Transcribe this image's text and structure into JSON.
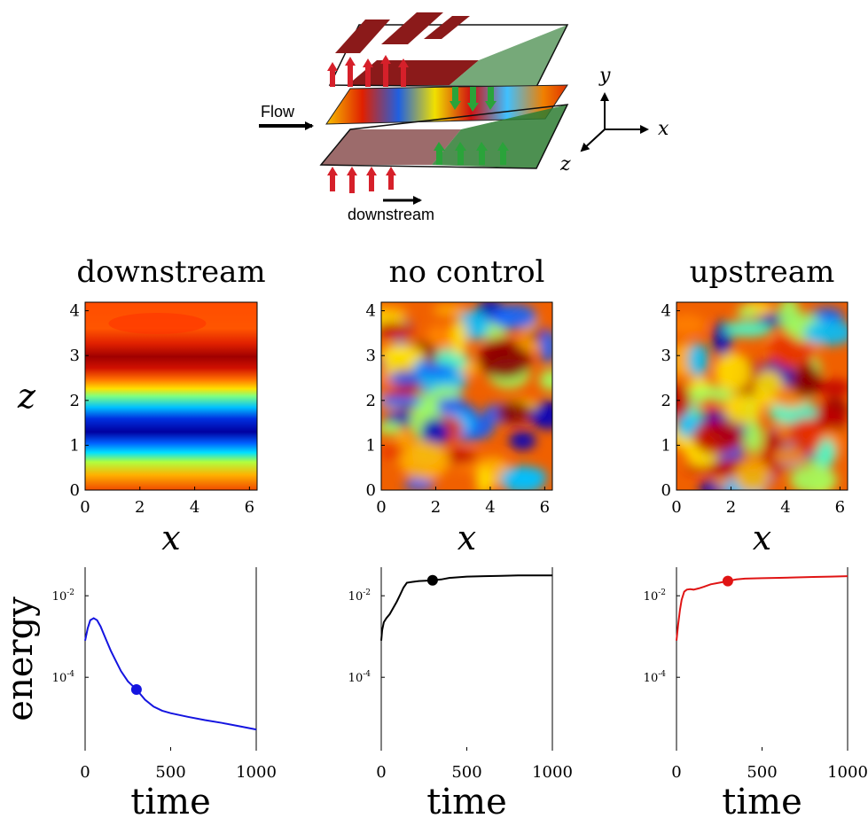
{
  "schematic": {
    "flow_label": "Flow",
    "downstream_label": "downstream",
    "axis_labels": {
      "y": "y",
      "x": "x",
      "z": "z"
    },
    "colors": {
      "upstream_actuator": "#8b1a1a",
      "downstream_actuator": "#2e7d32"
    }
  },
  "chart_data": [
    {
      "type": "heatmap",
      "title": "downstream",
      "xlabel": "x",
      "ylabel": "z",
      "xticks": [
        "0",
        "2",
        "4",
        "6"
      ],
      "yticks": [
        "0",
        "1",
        "2",
        "3",
        "4"
      ],
      "xlim": [
        0,
        6.28
      ],
      "ylim": [
        0,
        4.19
      ],
      "pattern": "spanwise-streak",
      "colormap": "jet"
    },
    {
      "type": "heatmap",
      "title": "no control",
      "xlabel": "x",
      "ylabel": "",
      "xticks": [
        "0",
        "2",
        "4",
        "6"
      ],
      "yticks": [
        "0",
        "1",
        "2",
        "3",
        "4"
      ],
      "xlim": [
        0,
        6.28
      ],
      "ylim": [
        0,
        4.19
      ],
      "pattern": "turbulent",
      "colormap": "jet"
    },
    {
      "type": "heatmap",
      "title": "upstream",
      "xlabel": "x",
      "ylabel": "",
      "xticks": [
        "0",
        "2",
        "4",
        "6"
      ],
      "yticks": [
        "0",
        "1",
        "2",
        "3",
        "4"
      ],
      "xlim": [
        0,
        6.28
      ],
      "ylim": [
        0,
        4.19
      ],
      "pattern": "turbulent",
      "colormap": "jet"
    },
    {
      "type": "line",
      "title": "",
      "xlabel": "time",
      "ylabel": "energy",
      "yscale": "log",
      "xlim": [
        0,
        1000
      ],
      "ylim_log10": [
        -5.8,
        -1.3
      ],
      "xticks": [
        "0",
        "500",
        "1000"
      ],
      "yticks": [
        {
          "label": "10",
          "exp": "-2",
          "log10": -2
        },
        {
          "label": "10",
          "exp": "-4",
          "log10": -4
        }
      ],
      "series": [
        {
          "color": "#1414e0",
          "x": [
            0,
            15,
            30,
            50,
            70,
            90,
            110,
            130,
            150,
            180,
            210,
            250,
            300,
            350,
            400,
            450,
            500,
            600,
            700,
            800,
            900,
            1000
          ],
          "log10_energy": [
            -3.1,
            -2.8,
            -2.6,
            -2.55,
            -2.6,
            -2.75,
            -2.95,
            -3.15,
            -3.35,
            -3.6,
            -3.85,
            -4.1,
            -4.3,
            -4.55,
            -4.72,
            -4.82,
            -4.88,
            -4.97,
            -5.05,
            -5.12,
            -5.2,
            -5.28
          ],
          "marker": {
            "x": 300,
            "log10_energy": -4.3
          }
        }
      ]
    },
    {
      "type": "line",
      "title": "",
      "xlabel": "time",
      "ylabel": "",
      "yscale": "log",
      "xlim": [
        0,
        1000
      ],
      "ylim_log10": [
        -5.8,
        -1.3
      ],
      "xticks": [
        "0",
        "500",
        "1000"
      ],
      "yticks": [
        {
          "label": "10",
          "exp": "-2",
          "log10": -2
        },
        {
          "label": "10",
          "exp": "-4",
          "log10": -4
        }
      ],
      "series": [
        {
          "color": "#000000",
          "x": [
            0,
            5,
            15,
            30,
            50,
            70,
            90,
            110,
            130,
            150,
            180,
            220,
            260,
            300,
            350,
            400,
            500,
            600,
            700,
            800,
            900,
            1000
          ],
          "log10_energy": [
            -3.1,
            -2.85,
            -2.65,
            -2.55,
            -2.45,
            -2.3,
            -2.15,
            -1.98,
            -1.8,
            -1.68,
            -1.66,
            -1.64,
            -1.63,
            -1.62,
            -1.6,
            -1.56,
            -1.53,
            -1.52,
            -1.51,
            -1.5,
            -1.5,
            -1.5
          ],
          "marker": {
            "x": 300,
            "log10_energy": -1.62
          }
        }
      ]
    },
    {
      "type": "line",
      "title": "",
      "xlabel": "time",
      "ylabel": "",
      "yscale": "log",
      "xlim": [
        0,
        1000
      ],
      "ylim_log10": [
        -5.8,
        -1.3
      ],
      "xticks": [
        "0",
        "500",
        "1000"
      ],
      "yticks": [
        {
          "label": "10",
          "exp": "-2",
          "log10": -2
        },
        {
          "label": "10",
          "exp": "-4",
          "log10": -4
        }
      ],
      "series": [
        {
          "color": "#e01414",
          "x": [
            0,
            10,
            20,
            30,
            45,
            60,
            80,
            100,
            130,
            160,
            200,
            250,
            300,
            350,
            400,
            500,
            600,
            700,
            800,
            900,
            1000
          ],
          "log10_energy": [
            -3.1,
            -2.7,
            -2.35,
            -2.1,
            -1.9,
            -1.85,
            -1.84,
            -1.85,
            -1.82,
            -1.78,
            -1.72,
            -1.68,
            -1.64,
            -1.6,
            -1.58,
            -1.57,
            -1.56,
            -1.55,
            -1.54,
            -1.53,
            -1.52
          ],
          "marker": {
            "x": 300,
            "log10_energy": -1.64
          }
        }
      ]
    }
  ]
}
